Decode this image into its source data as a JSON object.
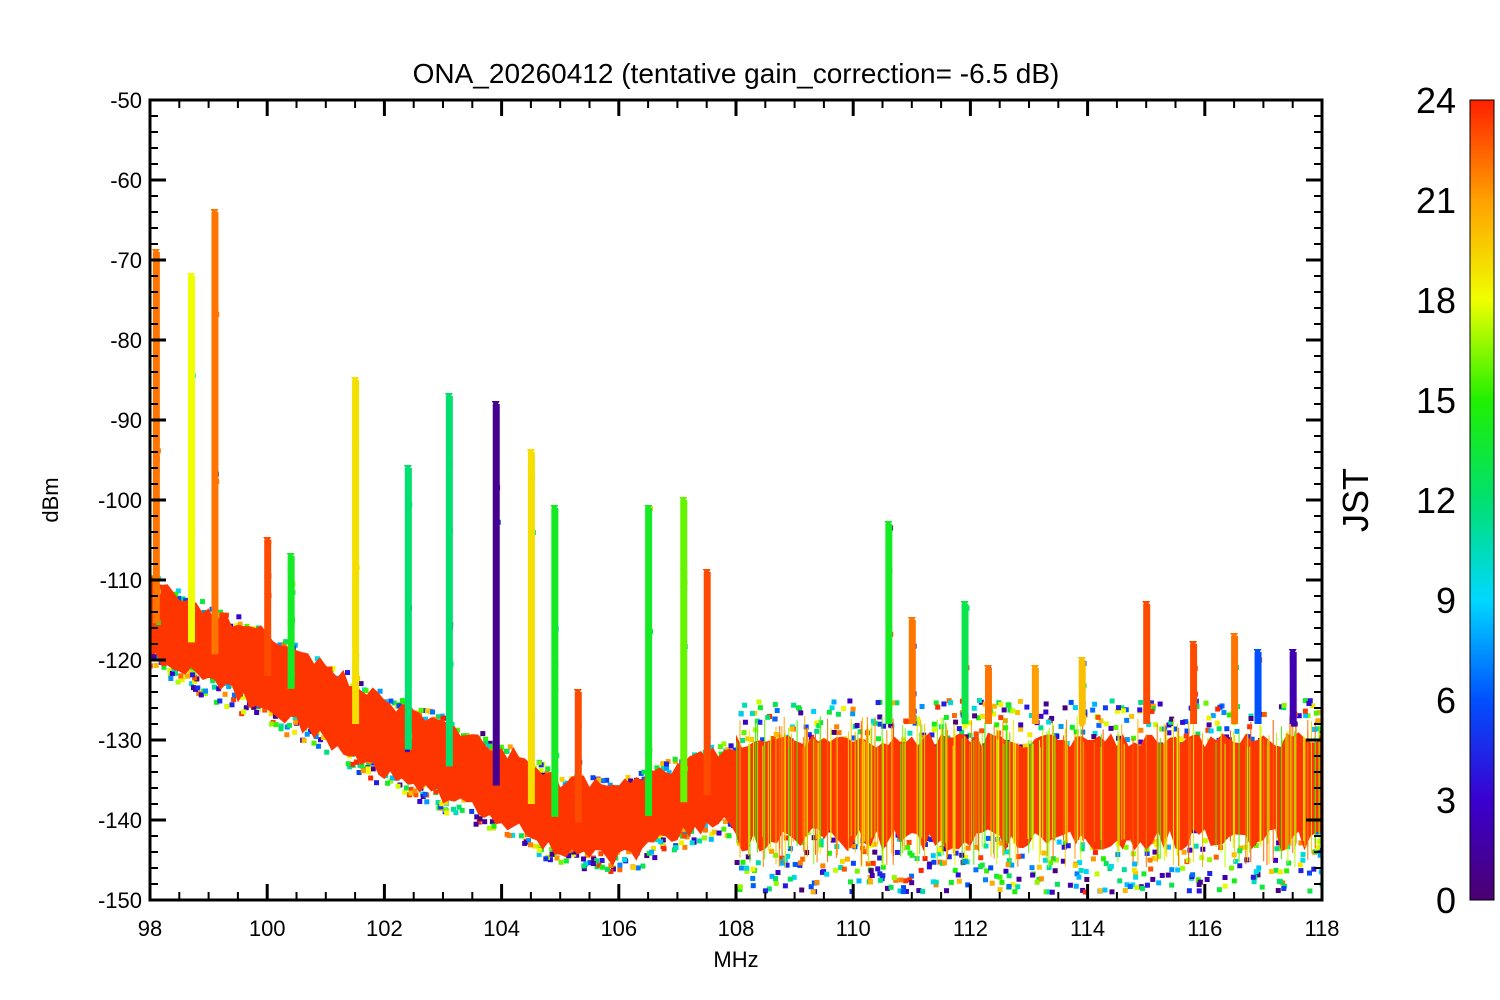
{
  "chart_data": {
    "type": "scatter",
    "title": "ONA_20260412 (tentative gain_correction= -6.5 dB)",
    "xlabel": "MHz",
    "ylabel": "dBm",
    "xlim": [
      98,
      118
    ],
    "ylim": [
      -150,
      -50
    ],
    "xticks": [
      98,
      100,
      102,
      104,
      106,
      108,
      110,
      112,
      114,
      116,
      118
    ],
    "yticks": [
      -50,
      -60,
      -70,
      -80,
      -90,
      -100,
      -110,
      -120,
      -130,
      -140,
      -150
    ],
    "colorbar": {
      "label": "JST",
      "range": [
        0,
        24
      ],
      "ticks": [
        0,
        3,
        6,
        9,
        12,
        15,
        18,
        21,
        24
      ]
    },
    "noise_floor": [
      {
        "x": 98.0,
        "y": -115
      },
      {
        "x": 99.0,
        "y": -119
      },
      {
        "x": 100.0,
        "y": -122
      },
      {
        "x": 101.0,
        "y": -126
      },
      {
        "x": 102.0,
        "y": -130
      },
      {
        "x": 103.0,
        "y": -133
      },
      {
        "x": 104.0,
        "y": -136
      },
      {
        "x": 105.0,
        "y": -140
      },
      {
        "x": 106.0,
        "y": -141
      },
      {
        "x": 107.0,
        "y": -138
      },
      {
        "x": 107.9,
        "y": -136
      },
      {
        "x": 108.0,
        "y": -137
      },
      {
        "x": 110.0,
        "y": -137
      },
      {
        "x": 112.0,
        "y": -137
      },
      {
        "x": 114.0,
        "y": -137
      },
      {
        "x": 116.0,
        "y": -136
      },
      {
        "x": 118.0,
        "y": -135
      }
    ],
    "noise_band_upper_above_108": -128,
    "noise_band_lower_above_108": -146,
    "peaks": [
      {
        "freq": 98.1,
        "max": -69,
        "jst": 22
      },
      {
        "freq": 98.7,
        "max": -72,
        "jst": 18
      },
      {
        "freq": 99.1,
        "max": -64,
        "jst": 22
      },
      {
        "freq": 100.0,
        "max": -105,
        "jst": 23
      },
      {
        "freq": 100.4,
        "max": -107,
        "jst": 14
      },
      {
        "freq": 101.5,
        "max": -85,
        "jst": 19
      },
      {
        "freq": 102.4,
        "max": -96,
        "jst": 12
      },
      {
        "freq": 103.1,
        "max": -87,
        "jst": 12
      },
      {
        "freq": 103.9,
        "max": -88,
        "jst": 1
      },
      {
        "freq": 104.5,
        "max": -94,
        "jst": 19
      },
      {
        "freq": 104.9,
        "max": -101,
        "jst": 14
      },
      {
        "freq": 105.3,
        "max": -124,
        "jst": 23
      },
      {
        "freq": 106.5,
        "max": -101,
        "jst": 14
      },
      {
        "freq": 107.1,
        "max": -100,
        "jst": 16
      },
      {
        "freq": 107.5,
        "max": -109,
        "jst": 23
      },
      {
        "freq": 110.6,
        "max": -103,
        "jst": 14
      },
      {
        "freq": 111.0,
        "max": -115,
        "jst": 22
      },
      {
        "freq": 111.9,
        "max": -113,
        "jst": 13
      },
      {
        "freq": 112.3,
        "max": -121,
        "jst": 22
      },
      {
        "freq": 113.1,
        "max": -121,
        "jst": 21
      },
      {
        "freq": 113.9,
        "max": -120,
        "jst": 20
      },
      {
        "freq": 115.0,
        "max": -113,
        "jst": 23
      },
      {
        "freq": 115.8,
        "max": -118,
        "jst": 23
      },
      {
        "freq": 116.5,
        "max": -117,
        "jst": 22
      },
      {
        "freq": 116.9,
        "max": -119,
        "jst": 6
      },
      {
        "freq": 117.5,
        "max": -119,
        "jst": 2
      }
    ]
  }
}
